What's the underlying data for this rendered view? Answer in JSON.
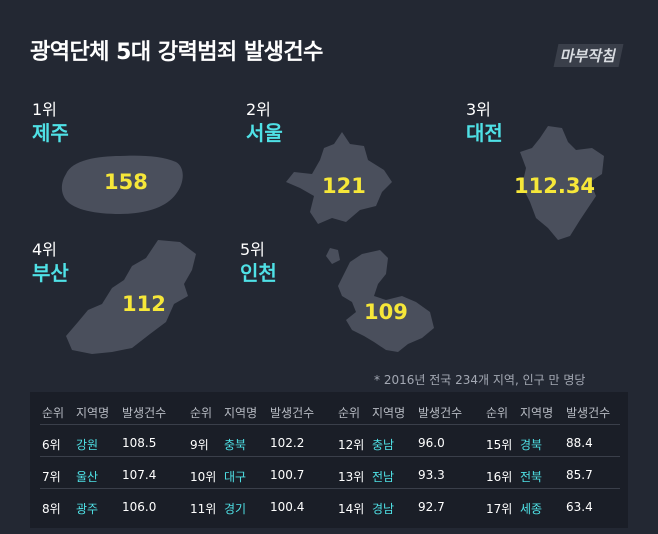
{
  "title": "광역단체 5대 강력범죄 발생건수",
  "logo": "마부작침",
  "note": "* 2016년 전국 234개 지역,  인구 만 명당",
  "chart_data": {
    "type": "table",
    "top5": [
      {
        "rank": "1위",
        "region": "제주",
        "value": "158"
      },
      {
        "rank": "2위",
        "region": "서울",
        "value": "121"
      },
      {
        "rank": "3위",
        "region": "대전",
        "value": "112.34"
      },
      {
        "rank": "4위",
        "region": "부산",
        "value": "112"
      },
      {
        "rank": "5위",
        "region": "인천",
        "value": "109"
      }
    ],
    "table_headers": [
      "순위",
      "지역명",
      "발생건수"
    ],
    "table_rows": [
      {
        "rank": "6위",
        "region": "강원",
        "value": "108.5"
      },
      {
        "rank": "7위",
        "region": "울산",
        "value": "107.4"
      },
      {
        "rank": "8위",
        "region": "광주",
        "value": "106.0"
      },
      {
        "rank": "9위",
        "region": "충북",
        "value": "102.2"
      },
      {
        "rank": "10위",
        "region": "대구",
        "value": "100.7"
      },
      {
        "rank": "11위",
        "region": "경기",
        "value": "100.4"
      },
      {
        "rank": "12위",
        "region": "충남",
        "value": "96.0"
      },
      {
        "rank": "13위",
        "region": "전남",
        "value": "93.3"
      },
      {
        "rank": "14위",
        "region": "경남",
        "value": "92.7"
      },
      {
        "rank": "15위",
        "region": "경북",
        "value": "88.4"
      },
      {
        "rank": "16위",
        "region": "전북",
        "value": "85.7"
      },
      {
        "rank": "17위",
        "region": "세종",
        "value": "63.4"
      }
    ]
  }
}
